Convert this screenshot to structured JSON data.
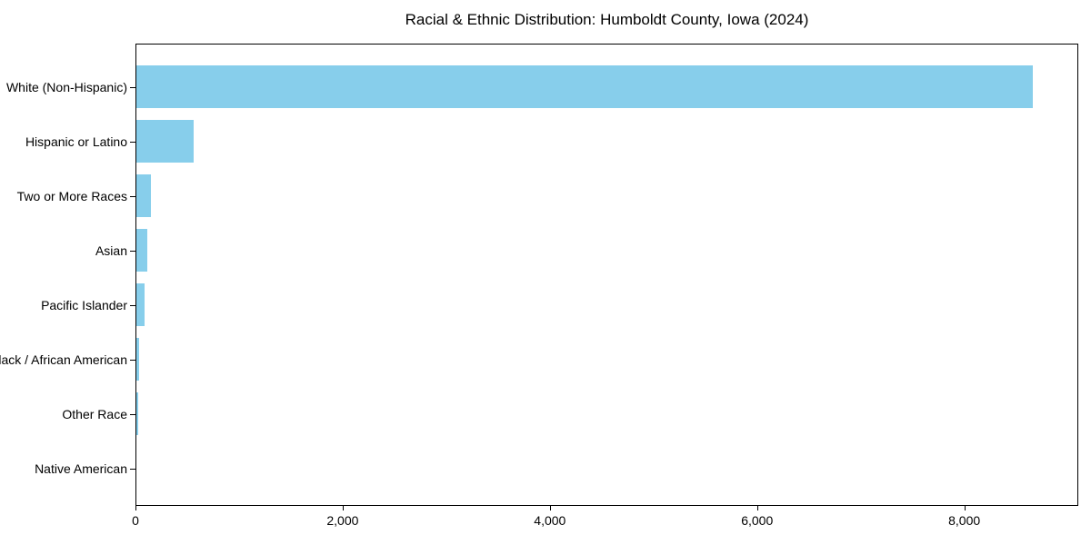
{
  "title": "Racial & Ethnic Distribution: Humboldt County, Iowa (2024)",
  "colors": {
    "bar": "#87CEEB",
    "axis": "#000000",
    "text": "#000000",
    "background": "#FFFFFF"
  },
  "chart_data": {
    "type": "bar",
    "orientation": "horizontal",
    "title": "Racial & Ethnic Distribution: Humboldt County, Iowa (2024)",
    "xlabel": "",
    "ylabel": "",
    "categories": [
      "White (Non-Hispanic)",
      "Hispanic or Latino",
      "Two or More Races",
      "Asian",
      "Pacific Islander",
      "Black / African American",
      "Other Race",
      "Native American"
    ],
    "values": [
      8670,
      550,
      145,
      105,
      80,
      25,
      18,
      0
    ],
    "xlim": [
      0,
      9100
    ],
    "xticks": {
      "values": [
        0,
        2000,
        4000,
        6000,
        8000
      ],
      "labels": [
        "0",
        "2,000",
        "4,000",
        "6,000",
        "8,000"
      ]
    },
    "grid": false,
    "legend": null,
    "bar_color": "#87CEEB"
  }
}
